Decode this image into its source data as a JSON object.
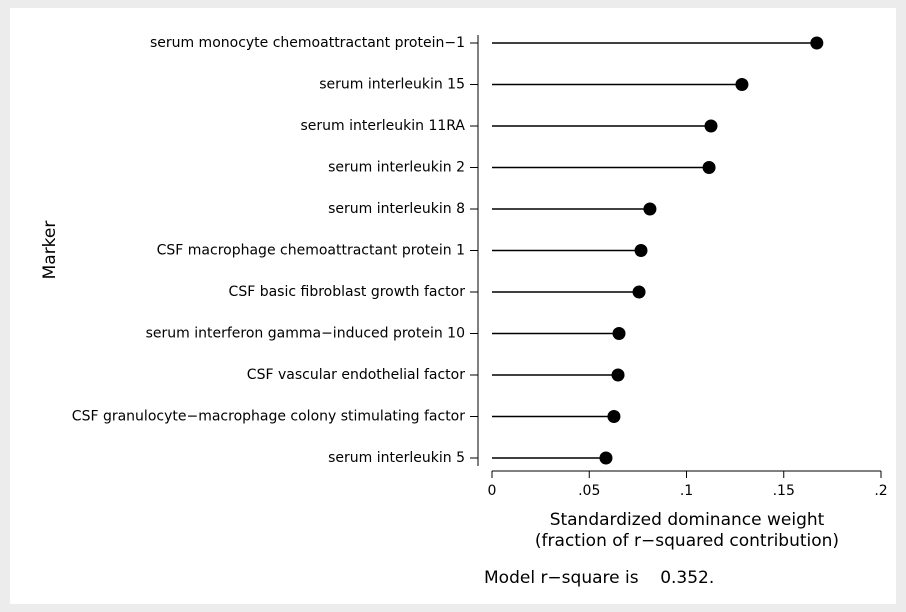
{
  "chart_data": {
    "type": "lollipop",
    "xlabel": [
      "Standardized dominance weight",
      "(fraction of r−squared contribution)"
    ],
    "ylabel": "Marker",
    "annotation": "Model r−square is    0.352.",
    "categories": [
      "serum monocyte chemoattractant protein−1",
      "serum interleukin 15",
      "serum interleukin 11RA",
      "serum interleukin 2",
      "serum interleukin 8",
      "CSF macrophage chemoattractant protein 1",
      "CSF basic fibroblast growth factor",
      "serum interferon gamma−induced protein 10",
      "CSF vascular endothelial factor",
      "CSF granulocyte−macrophage colony stimulating factor",
      "serum interleukin 5"
    ],
    "values": [
      0.167,
      0.1285,
      0.1126,
      0.1116,
      0.0812,
      0.0766,
      0.0756,
      0.0653,
      0.0648,
      0.0627,
      0.0586
    ],
    "color": "#000000",
    "xlim": [
      0,
      0.2
    ],
    "xticks": [
      0,
      {
        "value": 0.05,
        "label": ".05"
      },
      {
        "value": 0.1,
        "label": ".1"
      },
      {
        "value": 0.15,
        "label": ".15"
      },
      {
        "value": 0.2,
        "label": ".2"
      }
    ]
  }
}
